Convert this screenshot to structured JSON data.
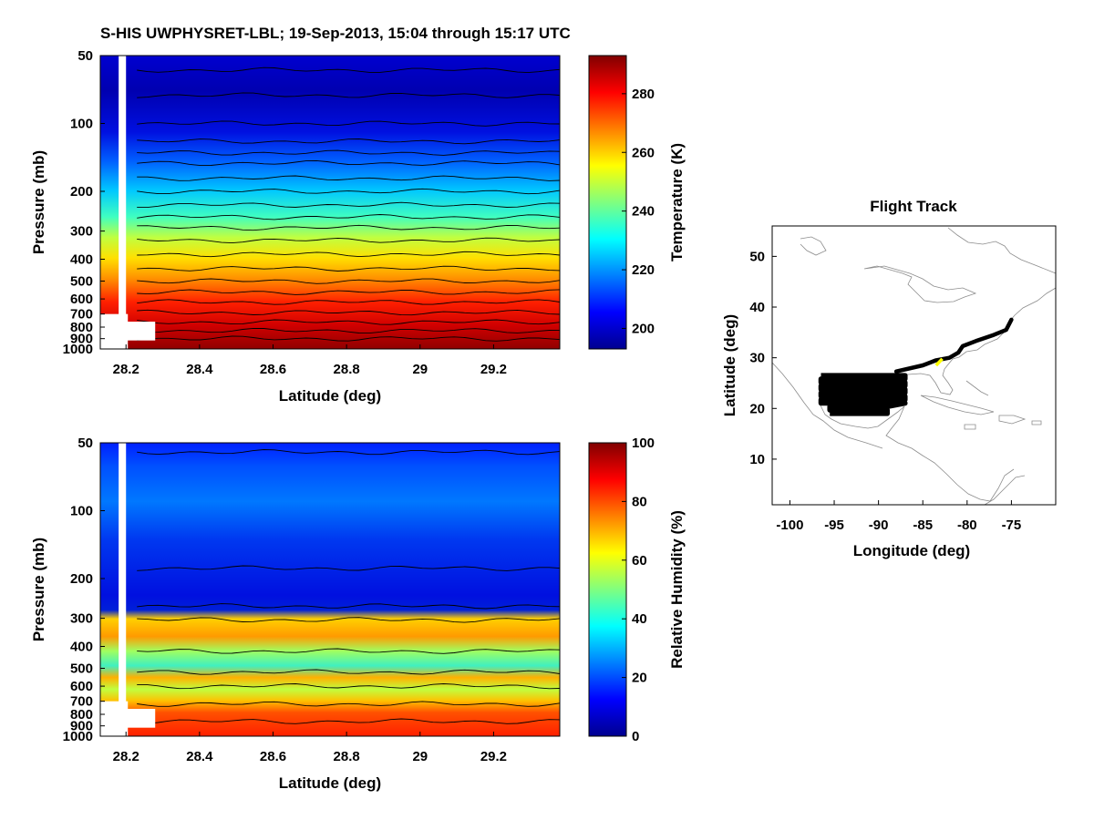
{
  "figure": {
    "title": "S-HIS UWPHYSRET-LBL;   19-Sep-2013, 15:04 through 15:17 UTC"
  },
  "chart_data": [
    {
      "id": "temperature",
      "type": "heatmap",
      "xlabel": "Latitude (deg)",
      "ylabel": "Pressure (mb)",
      "colorbar_label": "Temperature (K)",
      "x_ticks": [
        28.2,
        28.4,
        28.6,
        28.8,
        29,
        29.2
      ],
      "x_tick_labels": [
        "28.2",
        "28.4",
        "28.6",
        "28.8",
        "29",
        "29.2"
      ],
      "xlim": [
        28.13,
        29.38
      ],
      "y_scale": "log",
      "ylim": [
        1000,
        50
      ],
      "y_ticks": [
        50,
        100,
        200,
        300,
        400,
        500,
        600,
        700,
        800,
        900,
        1000
      ],
      "y_tick_labels": [
        "50",
        "100",
        "200",
        "300",
        "400",
        "500",
        "600",
        "700",
        "800",
        "900",
        "1000"
      ],
      "colorbar_range": [
        193,
        293
      ],
      "colorbar_ticks": [
        200,
        220,
        240,
        260,
        280
      ],
      "colorbar_tick_labels": [
        "200",
        "220",
        "240",
        "260",
        "280"
      ],
      "data_gap_latitude": [
        28.18,
        28.2
      ]
    },
    {
      "id": "humidity",
      "type": "heatmap",
      "xlabel": "Latitude (deg)",
      "ylabel": "Pressure (mb)",
      "colorbar_label": "Relative Humidity (%)",
      "x_ticks": [
        28.2,
        28.4,
        28.6,
        28.8,
        29,
        29.2
      ],
      "x_tick_labels": [
        "28.2",
        "28.4",
        "28.6",
        "28.8",
        "29",
        "29.2"
      ],
      "xlim": [
        28.13,
        29.38
      ],
      "y_scale": "log",
      "ylim": [
        1000,
        50
      ],
      "y_ticks": [
        50,
        100,
        200,
        300,
        400,
        500,
        600,
        700,
        800,
        900,
        1000
      ],
      "y_tick_labels": [
        "50",
        "100",
        "200",
        "300",
        "400",
        "500",
        "600",
        "700",
        "800",
        "900",
        "1000"
      ],
      "colorbar_range": [
        0,
        100
      ],
      "colorbar_ticks": [
        0,
        20,
        40,
        60,
        80,
        100
      ],
      "colorbar_tick_labels": [
        "0",
        "20",
        "40",
        "60",
        "80",
        "100"
      ],
      "profile_pressure_mb": [
        50,
        80,
        100,
        150,
        200,
        250,
        280,
        300,
        350,
        400,
        450,
        500,
        550,
        600,
        700,
        800,
        900,
        1000
      ],
      "profile_rh_percent": [
        12,
        16,
        20,
        14,
        10,
        8,
        15,
        60,
        72,
        45,
        42,
        55,
        50,
        52,
        64,
        75,
        80,
        85
      ],
      "data_gap_latitude": [
        28.18,
        28.2
      ]
    },
    {
      "id": "flight-track",
      "type": "line",
      "title": "Flight Track",
      "xlabel": "Longitude (deg)",
      "ylabel": "Latitude (deg)",
      "xlim": [
        -102,
        -70
      ],
      "ylim": [
        1,
        56
      ],
      "x_ticks": [
        -100,
        -95,
        -90,
        -85,
        -80,
        -75
      ],
      "x_tick_labels": [
        "-100",
        "-95",
        "-90",
        "-85",
        "-80",
        "-75"
      ],
      "y_ticks": [
        10,
        20,
        30,
        40,
        50
      ],
      "y_tick_labels": [
        "10",
        "20",
        "30",
        "40",
        "50"
      ],
      "track_lon": [
        -75,
        -75.6,
        -77,
        -79,
        -80.5,
        -81,
        -82,
        -83.5,
        -85,
        -88
      ],
      "track_lat": [
        37.5,
        35.5,
        34.5,
        33.3,
        32.3,
        31,
        30,
        29.5,
        28.5,
        27.3
      ],
      "highlight_segment": {
        "lon": [
          -83.5,
          -82.8
        ],
        "lat": [
          28.5,
          29.8
        ],
        "color": "#ffff00"
      },
      "survey_box": {
        "lon": [
          -96.5,
          -87
        ],
        "lat": [
          19,
          26.5
        ]
      }
    }
  ]
}
